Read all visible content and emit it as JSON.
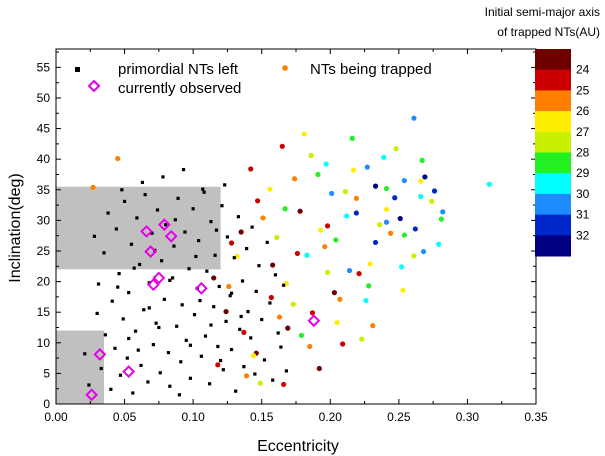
{
  "chart_data": {
    "type": "scatter",
    "xlabel": "Eccentricity",
    "ylabel": "Inclination(deg)",
    "xlim": [
      0.0,
      0.35
    ],
    "ylim": [
      0,
      58
    ],
    "x_ticks": [
      "0.00",
      "0.05",
      "0.10",
      "0.15",
      "0.20",
      "0.25",
      "0.30",
      "0.35"
    ],
    "y_ticks": [
      "0",
      "5",
      "10",
      "15",
      "20",
      "25",
      "30",
      "35",
      "40",
      "45",
      "50",
      "55"
    ],
    "shaded_regions": [
      {
        "x": [
          0.0,
          0.12
        ],
        "y": [
          22,
          35.5
        ]
      },
      {
        "x": [
          0.0,
          0.035
        ],
        "y": [
          0,
          12
        ]
      }
    ],
    "legend": {
      "placement": "top-left",
      "entries": [
        {
          "label": "primordial NTs left",
          "marker": "square",
          "color": "#000000"
        },
        {
          "label": "NTs being trapped",
          "marker": "circle",
          "color": "#ff8000"
        },
        {
          "label": "currently observed",
          "marker": "diamond",
          "color": "#e800e8"
        }
      ]
    },
    "colorbar": {
      "title_line1": "Initial semi-major axis",
      "title_line2": "of trapped NTs(AU)",
      "labels": [
        "24",
        "25",
        "26",
        "27",
        "28",
        "29",
        "30",
        "31",
        "32"
      ],
      "colors": [
        "#6e0000",
        "#cc0000",
        "#ff8000",
        "#ffee00",
        "#c8f000",
        "#22f022",
        "#00ffff",
        "#1e8cff",
        "#0028c8",
        "#000080"
      ]
    },
    "series": [
      {
        "name": "primordial NTs left",
        "marker": "square",
        "color": "#000000",
        "points": [
          [
            0.021,
            8.2
          ],
          [
            0.024,
            3.1
          ],
          [
            0.028,
            27.4
          ],
          [
            0.031,
            19.6
          ],
          [
            0.033,
            5.8
          ],
          [
            0.035,
            24.7
          ],
          [
            0.036,
            11.3
          ],
          [
            0.038,
            31.2
          ],
          [
            0.04,
            2.4
          ],
          [
            0.041,
            16.8
          ],
          [
            0.043,
            9.1
          ],
          [
            0.044,
            28.6
          ],
          [
            0.046,
            21.3
          ],
          [
            0.047,
            4.7
          ],
          [
            0.049,
            13.9
          ],
          [
            0.05,
            33.1
          ],
          [
            0.052,
            7.5
          ],
          [
            0.053,
            18.2
          ],
          [
            0.055,
            26.1
          ],
          [
            0.056,
            1.8
          ],
          [
            0.058,
            11.9
          ],
          [
            0.059,
            30.4
          ],
          [
            0.061,
            22.8
          ],
          [
            0.062,
            6.3
          ],
          [
            0.064,
            15.4
          ],
          [
            0.065,
            34.2
          ],
          [
            0.067,
            3.6
          ],
          [
            0.068,
            19.8
          ],
          [
            0.07,
            27.9
          ],
          [
            0.071,
            9.7
          ],
          [
            0.073,
            13.2
          ],
          [
            0.074,
            31.7
          ],
          [
            0.076,
            5.1
          ],
          [
            0.077,
            23.4
          ],
          [
            0.079,
            17.1
          ],
          [
            0.08,
            29.3
          ],
          [
            0.082,
            8.4
          ],
          [
            0.083,
            2.9
          ],
          [
            0.085,
            20.6
          ],
          [
            0.086,
            25.8
          ],
          [
            0.088,
            12.7
          ],
          [
            0.089,
            33.6
          ],
          [
            0.091,
            6.9
          ],
          [
            0.092,
            16.2
          ],
          [
            0.094,
            28.1
          ],
          [
            0.095,
            10.4
          ],
          [
            0.097,
            22.1
          ],
          [
            0.098,
            4.2
          ],
          [
            0.1,
            31.9
          ],
          [
            0.101,
            14.6
          ],
          [
            0.103,
            18.9
          ],
          [
            0.104,
            26.7
          ],
          [
            0.106,
            7.8
          ],
          [
            0.107,
            35.1
          ],
          [
            0.109,
            11.1
          ],
          [
            0.11,
            21.7
          ],
          [
            0.112,
            3.3
          ],
          [
            0.113,
            29.8
          ],
          [
            0.115,
            15.9
          ],
          [
            0.116,
            24.3
          ],
          [
            0.118,
            9.4
          ],
          [
            0.119,
            19.2
          ],
          [
            0.121,
            32.4
          ],
          [
            0.122,
            5.6
          ],
          [
            0.124,
            13.5
          ],
          [
            0.125,
            27.3
          ],
          [
            0.127,
            17.7
          ],
          [
            0.128,
            8.9
          ],
          [
            0.13,
            23.9
          ],
          [
            0.131,
            2.1
          ],
          [
            0.133,
            30.6
          ],
          [
            0.134,
            12.2
          ],
          [
            0.136,
            20.1
          ],
          [
            0.137,
            6.1
          ],
          [
            0.139,
            25.4
          ],
          [
            0.14,
            15.1
          ],
          [
            0.142,
            10.8
          ],
          [
            0.143,
            28.9
          ],
          [
            0.145,
            4.9
          ],
          [
            0.146,
            18.4
          ],
          [
            0.148,
            22.6
          ],
          [
            0.15,
            13.8
          ],
          [
            0.152,
            7.2
          ],
          [
            0.154,
            26.4
          ],
          [
            0.156,
            16.5
          ],
          [
            0.158,
            3.9
          ],
          [
            0.16,
            21.1
          ],
          [
            0.162,
            11.6
          ],
          [
            0.164,
            9.3
          ],
          [
            0.166,
            19.4
          ],
          [
            0.168,
            5.4
          ],
          [
            0.03,
            14.8
          ],
          [
            0.045,
            19.1
          ],
          [
            0.06,
            8.8
          ],
          [
            0.075,
            12.5
          ],
          [
            0.09,
            1.5
          ],
          [
            0.105,
            16.9
          ],
          [
            0.12,
            7.1
          ],
          [
            0.135,
            14.3
          ],
          [
            0.057,
            22.2
          ],
          [
            0.072,
            25.1
          ],
          [
            0.087,
            30.1
          ],
          [
            0.102,
            24.1
          ],
          [
            0.117,
            28.4
          ],
          [
            0.048,
            35.0
          ],
          [
            0.063,
            36.2
          ],
          [
            0.078,
            37.1
          ],
          [
            0.093,
            38.3
          ],
          [
            0.108,
            34.6
          ],
          [
            0.123,
            35.8
          ],
          [
            0.053,
            10.7
          ],
          [
            0.068,
            15.7
          ],
          [
            0.083,
            20.2
          ],
          [
            0.098,
            9.6
          ],
          [
            0.113,
            12.9
          ],
          [
            0.128,
            18.1
          ]
        ]
      },
      {
        "name": "NTs being trapped",
        "marker": "circle",
        "points": [
          [
            0.115,
            20.6,
            0
          ],
          [
            0.124,
            15.1,
            0
          ],
          [
            0.135,
            28.1,
            0
          ],
          [
            0.146,
            8.3,
            0
          ],
          [
            0.158,
            22.7,
            0
          ],
          [
            0.169,
            12.4,
            0
          ],
          [
            0.178,
            31.5,
            0
          ],
          [
            0.192,
            5.8,
            0
          ],
          [
            0.203,
            18.2,
            0
          ],
          [
            0.118,
            6.4,
            1
          ],
          [
            0.128,
            26.3,
            1
          ],
          [
            0.137,
            11.7,
            1
          ],
          [
            0.147,
            33.2,
            1
          ],
          [
            0.157,
            17.4,
            1
          ],
          [
            0.166,
            3.2,
            1
          ],
          [
            0.176,
            24.6,
            1
          ],
          [
            0.187,
            14.9,
            1
          ],
          [
            0.198,
            29.1,
            1
          ],
          [
            0.209,
            9.8,
            1
          ],
          [
            0.221,
            21.3,
            1
          ],
          [
            0.142,
            38.4,
            1
          ],
          [
            0.165,
            42.1,
            1
          ],
          [
            0.126,
            19.2,
            2
          ],
          [
            0.139,
            4.6,
            2
          ],
          [
            0.151,
            30.4,
            2
          ],
          [
            0.163,
            14.2,
            2
          ],
          [
            0.174,
            36.8,
            2
          ],
          [
            0.185,
            9.4,
            2
          ],
          [
            0.196,
            25.7,
            2
          ],
          [
            0.207,
            17.1,
            2
          ],
          [
            0.219,
            33.6,
            2
          ],
          [
            0.231,
            12.8,
            2
          ],
          [
            0.244,
            27.9,
            2
          ],
          [
            0.045,
            40.1,
            2
          ],
          [
            0.027,
            35.4,
            2
          ],
          [
            0.132,
            24.1,
            3
          ],
          [
            0.144,
            7.9,
            3
          ],
          [
            0.156,
            35.1,
            3
          ],
          [
            0.168,
            19.7,
            3
          ],
          [
            0.181,
            44.1,
            3
          ],
          [
            0.193,
            28.4,
            3
          ],
          [
            0.205,
            13.3,
            3
          ],
          [
            0.217,
            38.2,
            3
          ],
          [
            0.229,
            22.9,
            3
          ],
          [
            0.241,
            31.8,
            3
          ],
          [
            0.253,
            18.6,
            3
          ],
          [
            0.266,
            36.4,
            3
          ],
          [
            0.149,
            3.4,
            4
          ],
          [
            0.161,
            27.2,
            4
          ],
          [
            0.173,
            16.3,
            4
          ],
          [
            0.186,
            40.6,
            4
          ],
          [
            0.198,
            21.5,
            4
          ],
          [
            0.211,
            34.7,
            4
          ],
          [
            0.223,
            10.6,
            4
          ],
          [
            0.236,
            29.3,
            4
          ],
          [
            0.248,
            41.7,
            4
          ],
          [
            0.261,
            24.2,
            4
          ],
          [
            0.274,
            33.1,
            4
          ],
          [
            0.167,
            31.9,
            5
          ],
          [
            0.179,
            11.2,
            5
          ],
          [
            0.191,
            37.5,
            5
          ],
          [
            0.204,
            26.8,
            5
          ],
          [
            0.216,
            43.4,
            5
          ],
          [
            0.228,
            19.3,
            5
          ],
          [
            0.241,
            35.2,
            5
          ],
          [
            0.254,
            27.6,
            5
          ],
          [
            0.267,
            39.8,
            5
          ],
          [
            0.281,
            30.2,
            5
          ],
          [
            0.183,
            24.3,
            6
          ],
          [
            0.197,
            39.2,
            6
          ],
          [
            0.212,
            30.7,
            6
          ],
          [
            0.226,
            16.9,
            6
          ],
          [
            0.239,
            40.3,
            6
          ],
          [
            0.252,
            22.4,
            6
          ],
          [
            0.266,
            33.9,
            6
          ],
          [
            0.279,
            26.1,
            6
          ],
          [
            0.316,
            35.9,
            6
          ],
          [
            0.201,
            34.4,
            7
          ],
          [
            0.214,
            21.8,
            7
          ],
          [
            0.227,
            38.7,
            7
          ],
          [
            0.241,
            29.7,
            7
          ],
          [
            0.254,
            36.5,
            7
          ],
          [
            0.268,
            24.9,
            7
          ],
          [
            0.282,
            31.4,
            7
          ],
          [
            0.261,
            46.7,
            7
          ],
          [
            0.219,
            31.2,
            8
          ],
          [
            0.233,
            26.4,
            8
          ],
          [
            0.247,
            33.7,
            8
          ],
          [
            0.262,
            28.6,
            8
          ],
          [
            0.276,
            34.8,
            8
          ],
          [
            0.233,
            35.6,
            9
          ],
          [
            0.251,
            30.3,
            9
          ],
          [
            0.269,
            37.1,
            9
          ]
        ]
      },
      {
        "name": "currently observed",
        "marker": "diamond",
        "color": "#e800e8",
        "points": [
          [
            0.026,
            1.5
          ],
          [
            0.032,
            8.1
          ],
          [
            0.053,
            5.3
          ],
          [
            0.066,
            28.2
          ],
          [
            0.069,
            24.9
          ],
          [
            0.071,
            19.5
          ],
          [
            0.075,
            20.6
          ],
          [
            0.079,
            29.3
          ],
          [
            0.084,
            27.4
          ],
          [
            0.106,
            18.9
          ],
          [
            0.188,
            13.6
          ]
        ]
      }
    ]
  }
}
